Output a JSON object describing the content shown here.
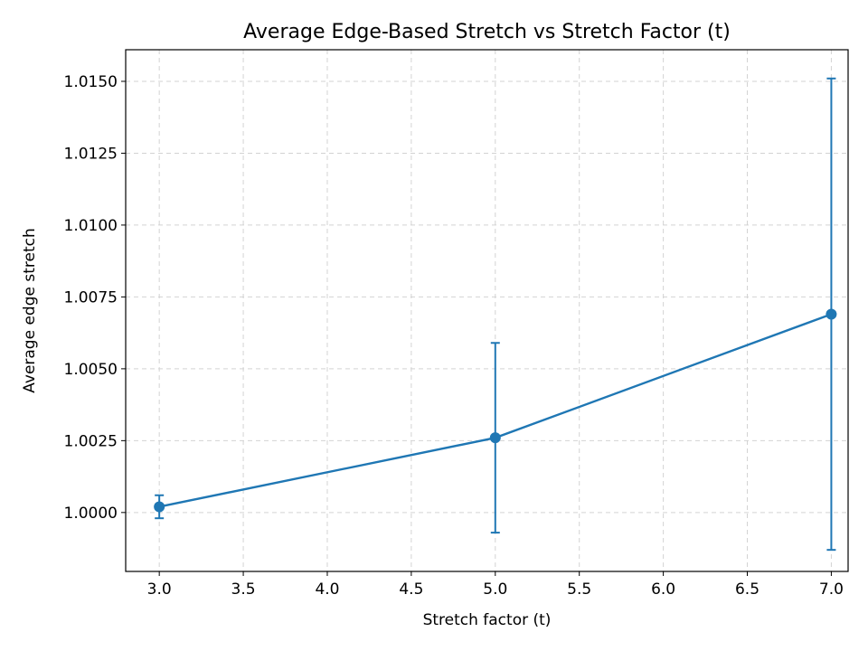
{
  "chart_data": {
    "type": "line",
    "title": "Average Edge-Based Stretch vs Stretch Factor (t)",
    "xlabel": "Stretch factor (t)",
    "ylabel": "Average edge stretch",
    "xlim": [
      2.8,
      7.1
    ],
    "ylim": [
      0.99795,
      1.0161
    ],
    "xticks": [
      "3.0",
      "3.5",
      "4.0",
      "4.5",
      "5.0",
      "5.5",
      "6.0",
      "6.5",
      "7.0"
    ],
    "yticks": [
      "1.0000",
      "1.0025",
      "1.0050",
      "1.0075",
      "1.0100",
      "1.0125",
      "1.0150"
    ],
    "grid": true,
    "series": [
      {
        "x": [
          3.0,
          5.0,
          7.0
        ],
        "y": [
          1.0002,
          1.0026,
          1.0069
        ],
        "yerr": [
          0.0004,
          0.0033,
          0.0082
        ],
        "color": "#1f77b4"
      }
    ]
  }
}
